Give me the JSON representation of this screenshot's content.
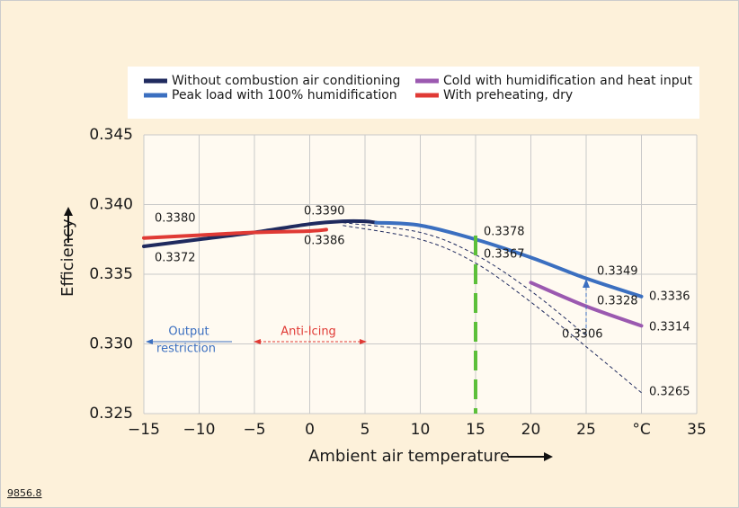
{
  "chart_data": {
    "type": "line",
    "x_label": "Ambient air temperature",
    "y_label": "Efficiency",
    "figure_number": "9856.8",
    "xlim": [
      -15,
      35
    ],
    "ylim": [
      0.325,
      0.345
    ],
    "xticks": [
      {
        "value": -15,
        "label": "−15"
      },
      {
        "value": -10,
        "label": "−10"
      },
      {
        "value": -5,
        "label": "−5"
      },
      0,
      5,
      10,
      15,
      20,
      25,
      {
        "value": 30,
        "label": "°C"
      },
      35
    ],
    "yticks": [
      0.325,
      {
        "value": 0.33,
        "label": "0.330"
      },
      0.335,
      {
        "value": 0.34,
        "label": "0.340"
      },
      0.345
    ],
    "grid": true,
    "series": [
      {
        "name": "Without combustion air conditioning",
        "color": "#1f2a5e",
        "x": [
          -15,
          -10,
          -5,
          0,
          3,
          5,
          6
        ],
        "values": [
          0.337,
          0.3375,
          0.338,
          0.3386,
          0.3388,
          0.3388,
          0.3387
        ]
      },
      {
        "name": "Peak load with 100% humidification",
        "color": "#3b6fc0",
        "x": [
          6,
          10,
          15,
          20,
          25,
          30
        ],
        "values": [
          0.3387,
          0.3385,
          0.3375,
          0.3362,
          0.3347,
          0.3334
        ]
      },
      {
        "name": "Cold with humidification and heat input",
        "color": "#9b59b0",
        "x": [
          20,
          25,
          30
        ],
        "values": [
          0.3344,
          0.3327,
          0.3313
        ]
      },
      {
        "name": "With preheating, dry",
        "color": "#e03a35",
        "x": [
          -15,
          -10,
          -5,
          0,
          1.5
        ],
        "values": [
          0.3376,
          0.3378,
          0.338,
          0.3381,
          0.3382
        ]
      }
    ],
    "reference_curves": [
      {
        "color": "#1f2a5e",
        "x": [
          3,
          10,
          15,
          20,
          25
        ],
        "values": [
          0.3387,
          0.338,
          0.3364,
          0.3338,
          0.3306
        ]
      },
      {
        "color": "#1f2a5e",
        "x": [
          3,
          10,
          15,
          20,
          25,
          30
        ],
        "values": [
          0.3385,
          0.3375,
          0.3358,
          0.333,
          0.3298,
          0.3265
        ]
      }
    ],
    "annotations": [
      "0.3380",
      "0.3372",
      "0.3390",
      "0.3386",
      "0.3378",
      "0.3367",
      "0.3349",
      "0.3328",
      "0.3336",
      "0.3306",
      "0.3314",
      "0.3265",
      "Output",
      "restriction",
      "Anti-Icing"
    ]
  }
}
